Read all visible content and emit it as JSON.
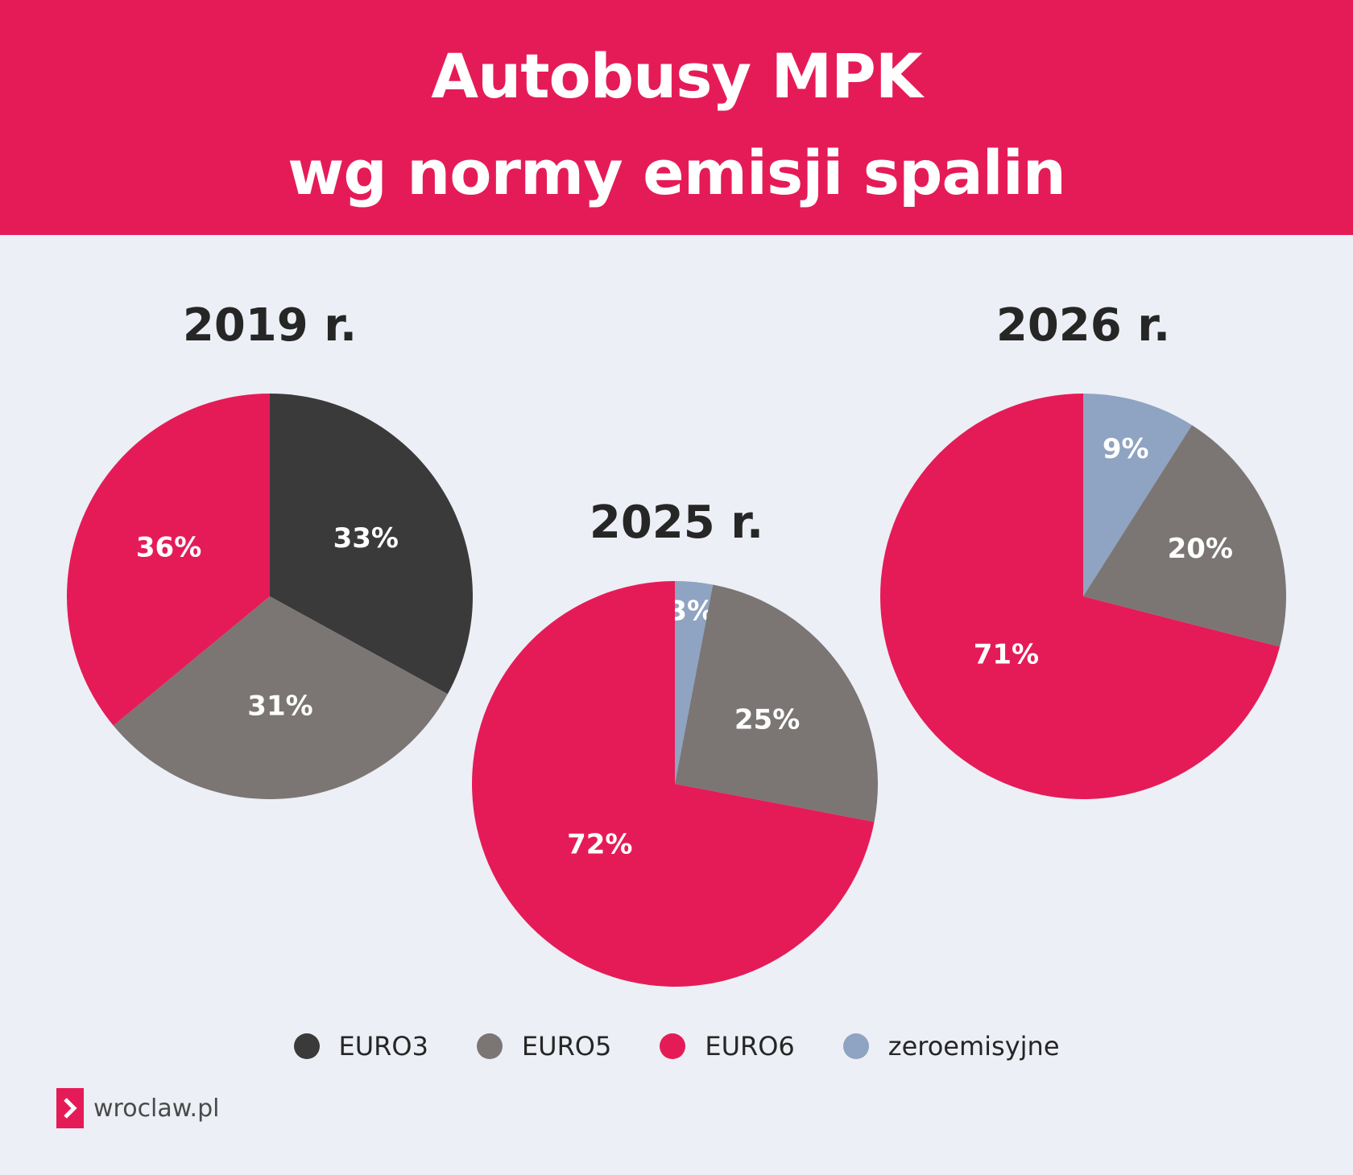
{
  "header": {
    "title_line1": "Autobusy MPK",
    "title_line2": "wg normy emisji spalin"
  },
  "colors": {
    "header_bg": "#e51b57",
    "EURO3": "#3a3a3a",
    "EURO5": "#7b7674",
    "EURO6": "#e51b57",
    "zeroemisyjne": "#8fa3c2"
  },
  "chart_data": [
    {
      "type": "pie",
      "title": "2019 r.",
      "slices": [
        {
          "name": "EURO3",
          "value": 33,
          "label": "33%"
        },
        {
          "name": "EURO5",
          "value": 31,
          "label": "31%"
        },
        {
          "name": "EURO6",
          "value": 36,
          "label": "36%"
        }
      ]
    },
    {
      "type": "pie",
      "title": "2025 r.",
      "slices": [
        {
          "name": "zeroemisyjne",
          "value": 3,
          "label": "3%"
        },
        {
          "name": "EURO5",
          "value": 25,
          "label": "25%"
        },
        {
          "name": "EURO6",
          "value": 72,
          "label": "72%"
        }
      ]
    },
    {
      "type": "pie",
      "title": "2026 r.",
      "slices": [
        {
          "name": "zeroemisyjne",
          "value": 9,
          "label": "9%"
        },
        {
          "name": "EURO5",
          "value": 20,
          "label": "20%"
        },
        {
          "name": "EURO6",
          "value": 71,
          "label": "71%"
        }
      ]
    }
  ],
  "legend": [
    {
      "name": "EURO3",
      "label": "EURO3"
    },
    {
      "name": "EURO5",
      "label": "EURO5"
    },
    {
      "name": "EURO6",
      "label": "EURO6"
    },
    {
      "name": "zeroemisyjne",
      "label": "zeroemisyjne"
    }
  ],
  "footer": {
    "logo_icon": "chevron-right-icon",
    "brand_text": "wroclaw.pl"
  }
}
